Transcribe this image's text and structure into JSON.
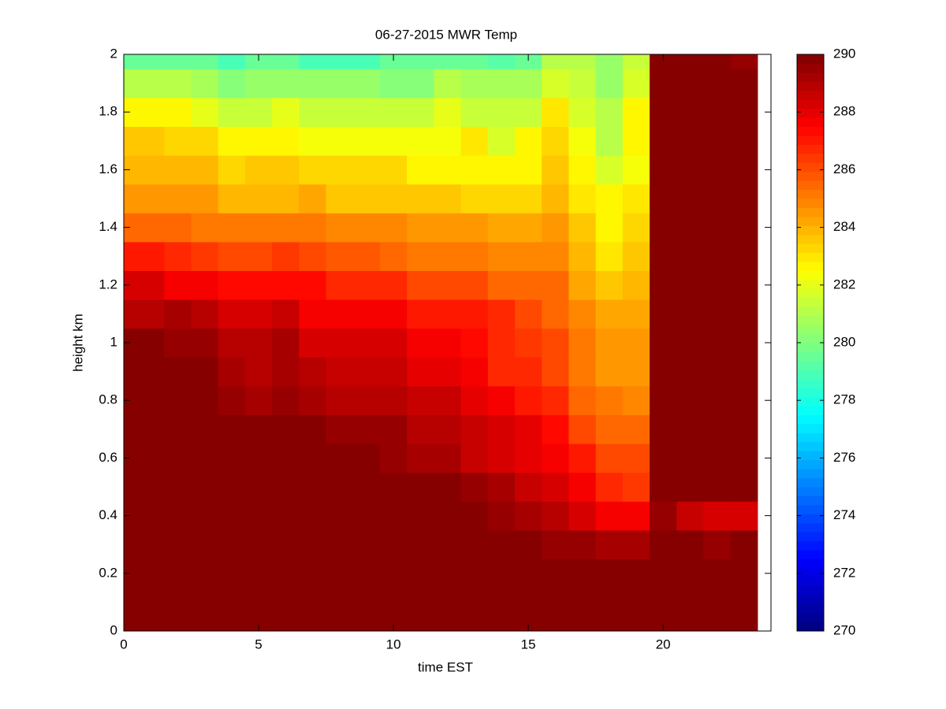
{
  "chart_data": {
    "type": "heatmap",
    "title": "06-27-2015 MWR Temp",
    "x_label": "time EST",
    "y_label": "height km",
    "x": [
      0,
      1.5,
      2.5,
      3.5,
      4.5,
      5.5,
      6.5,
      7.5,
      8.5,
      9.5,
      10.5,
      11.5,
      12.5,
      13.5,
      14.5,
      15.5,
      16.5,
      17.5,
      18.5,
      19.5,
      20.5,
      21.5,
      22.5,
      23.5
    ],
    "y": [
      0,
      0.25,
      0.35,
      0.45,
      0.55,
      0.65,
      0.75,
      0.85,
      0.95,
      1.05,
      1.15,
      1.25,
      1.35,
      1.45,
      1.55,
      1.65,
      1.75,
      1.85,
      1.95,
      2
    ],
    "z": [
      [
        290,
        290,
        290,
        290,
        290,
        290,
        290,
        290,
        290,
        290,
        290,
        290,
        290,
        290,
        290,
        290,
        290,
        290,
        290,
        290,
        290,
        290,
        290
      ],
      [
        290,
        290,
        290,
        290,
        290,
        290,
        290,
        290,
        290,
        290,
        290,
        290,
        290,
        290,
        290,
        289.6,
        289.4,
        289.2,
        289.2,
        290,
        290,
        289.4,
        289.7
      ],
      [
        290,
        290,
        290,
        290,
        290,
        290,
        290,
        290,
        290,
        290,
        290,
        290,
        290,
        289.4,
        289.2,
        288.8,
        288.4,
        287.8,
        287.5,
        289.6,
        288.6,
        288.2,
        288.2
      ],
      [
        290,
        290,
        290,
        290,
        290,
        290,
        290,
        290,
        290,
        290,
        290,
        290,
        289.5,
        289.2,
        288.6,
        288.3,
        287.5,
        286.8,
        286.5,
        290,
        290,
        290,
        290
      ],
      [
        290,
        290,
        290,
        290,
        290,
        290,
        290,
        290,
        290,
        289.6,
        289.2,
        289.2,
        288.6,
        288.4,
        288.1,
        287.8,
        287,
        286.2,
        286.2,
        290,
        290,
        290,
        290
      ],
      [
        290,
        290,
        290,
        290,
        290,
        290,
        290,
        289.6,
        289.6,
        289.4,
        288.8,
        288.8,
        288.6,
        288.3,
        288,
        287.2,
        286,
        285.6,
        285.6,
        290,
        290,
        290,
        290
      ],
      [
        290,
        290,
        290,
        289.6,
        289.2,
        289.5,
        289.2,
        288.8,
        288.8,
        289,
        288.5,
        288.5,
        288.1,
        287.5,
        287,
        286.6,
        285.6,
        285.3,
        284.8,
        290,
        290,
        290,
        290
      ],
      [
        290,
        290,
        289.7,
        289.3,
        288.9,
        289.3,
        288.9,
        288.6,
        288.6,
        288.6,
        288,
        288,
        287.7,
        286.7,
        286.7,
        286,
        285,
        284.6,
        284.6,
        290,
        290,
        290,
        290
      ],
      [
        290,
        289.6,
        289.4,
        289,
        289,
        289.3,
        288.4,
        288.4,
        288.2,
        288.2,
        287.6,
        287.6,
        287.4,
        286.8,
        286.3,
        286,
        285,
        284.4,
        284.4,
        290,
        290,
        290,
        290
      ],
      [
        289,
        289.2,
        288.8,
        288.2,
        288.2,
        288.5,
        287.6,
        287.6,
        287.6,
        287.8,
        287,
        287,
        287,
        286.6,
        286.2,
        285.6,
        284.8,
        284.2,
        284.2,
        290,
        290,
        290,
        290
      ],
      [
        288.2,
        287.8,
        287.8,
        287.2,
        287.2,
        287.4,
        287.2,
        286.8,
        286.8,
        286.8,
        286,
        286,
        286,
        285.6,
        285.6,
        285.6,
        284.2,
        283.5,
        284,
        290,
        290,
        290,
        290
      ],
      [
        287,
        286.8,
        286.5,
        286,
        286,
        286.3,
        286.2,
        285.8,
        285.8,
        285.6,
        285.3,
        285.3,
        285.3,
        284.8,
        284.8,
        284.8,
        283.8,
        283,
        283.5,
        290,
        290,
        290,
        290
      ],
      [
        285.6,
        285.6,
        285.3,
        285,
        285,
        285.3,
        285.1,
        284.8,
        284.8,
        284.8,
        284.4,
        284.4,
        284.4,
        284.2,
        284.2,
        284.5,
        283.6,
        282.8,
        283.2,
        290,
        290,
        290,
        290
      ],
      [
        284.5,
        284.5,
        284.5,
        284,
        284,
        284,
        284.2,
        283.5,
        283.5,
        283.5,
        283.5,
        283.5,
        283.2,
        283.2,
        283.2,
        283.8,
        283,
        282.5,
        283,
        290,
        290,
        290,
        290
      ],
      [
        284,
        284,
        283.8,
        283.2,
        283.6,
        283.6,
        283.2,
        283.2,
        283.2,
        283.2,
        282.8,
        282.8,
        282.8,
        282.5,
        282.5,
        283.6,
        282.5,
        281.8,
        282.3,
        290,
        290,
        290,
        290
      ],
      [
        283.5,
        283.2,
        283.2,
        282.8,
        282.8,
        282.8,
        282.3,
        282.3,
        282.3,
        282.3,
        282.3,
        282.3,
        283,
        281.8,
        282.5,
        283.3,
        282.3,
        281.2,
        282.5,
        290,
        290,
        290,
        290
      ],
      [
        282.5,
        282.5,
        282,
        281.5,
        281.5,
        282,
        281.5,
        281.5,
        281.5,
        281.5,
        281.5,
        282,
        281.5,
        281.5,
        281.5,
        283,
        281.8,
        281,
        282.5,
        290,
        290,
        290,
        290
      ],
      [
        281,
        281,
        280.8,
        280.3,
        280.6,
        280.6,
        280.5,
        280.5,
        280.5,
        280.3,
        280.3,
        281,
        280.8,
        280.8,
        280.8,
        281.7,
        281.3,
        280.5,
        281.8,
        290,
        290,
        290,
        290
      ],
      [
        279.5,
        279.5,
        279.5,
        279,
        279.5,
        279.5,
        279,
        279,
        279,
        279.5,
        279.5,
        279.5,
        279.5,
        279.2,
        279.5,
        281,
        281,
        280.5,
        281.5,
        290,
        290,
        290,
        289.5
      ]
    ],
    "xlim": [
      0,
      24
    ],
    "ylim": [
      0,
      2
    ],
    "xticks": [
      0,
      5,
      10,
      15,
      20
    ],
    "yticks": [
      0,
      0.2,
      0.4,
      0.6,
      0.8,
      1,
      1.2,
      1.4,
      1.6,
      1.8,
      2
    ],
    "colormap": "jet",
    "zlim": [
      270,
      290
    ],
    "zticks": [
      270,
      272,
      274,
      276,
      278,
      280,
      282,
      284,
      286,
      288,
      290
    ]
  }
}
